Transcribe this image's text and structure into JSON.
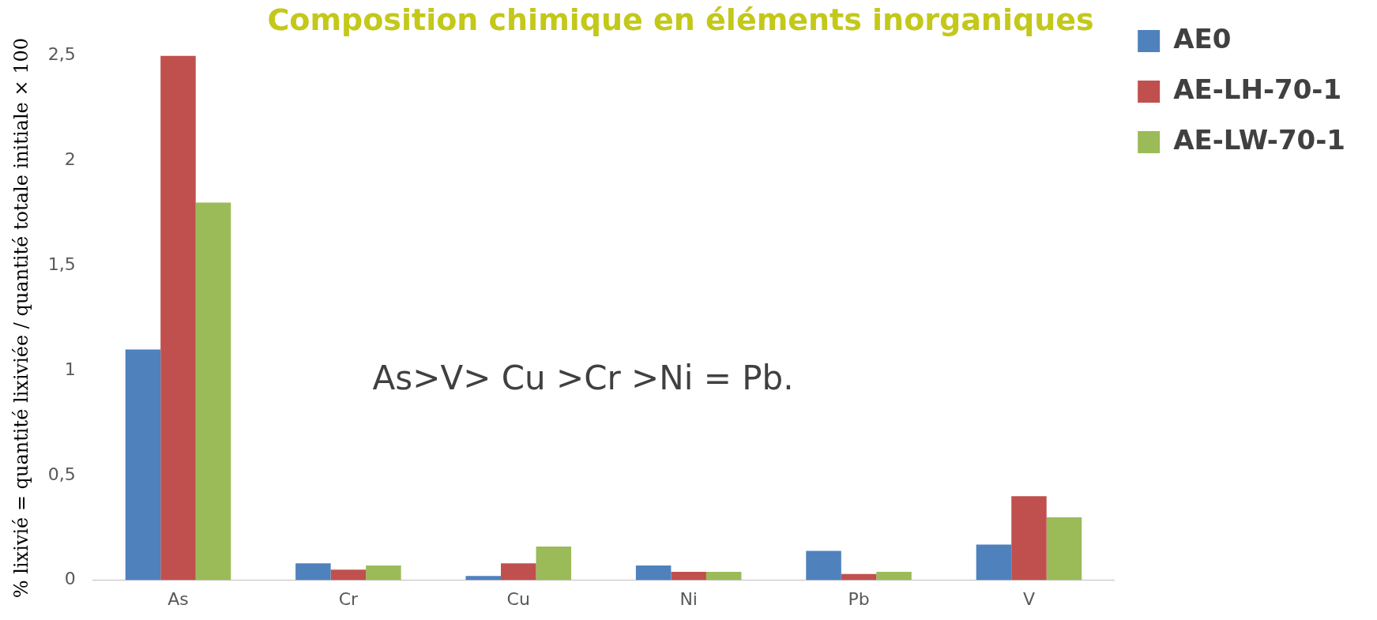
{
  "chart_data": {
    "type": "bar",
    "title": "Composition chimique en éléments inorganiques",
    "ylabel": "% lixivié = quantité lixiviée / quantité totale initiale × 100",
    "categories": [
      "As",
      "Cr",
      "Cu",
      "Ni",
      "Pb",
      "V"
    ],
    "series": [
      {
        "name": "AE0",
        "color": "#4f81bd",
        "values": [
          1.1,
          0.08,
          0.02,
          0.07,
          0.14,
          0.17
        ]
      },
      {
        "name": "AE-LH-70-1",
        "color": "#c0504d",
        "values": [
          2.5,
          0.05,
          0.08,
          0.04,
          0.03,
          0.4
        ]
      },
      {
        "name": "AE-LW-70-1",
        "color": "#9bbb59",
        "values": [
          1.8,
          0.07,
          0.16,
          0.04,
          0.04,
          0.3
        ]
      }
    ],
    "ylim": [
      0,
      2.5
    ],
    "yticks": [
      0,
      {
        "value": 0.5,
        "label": "0,5"
      },
      1,
      {
        "value": 1.5,
        "label": "1,5"
      },
      2,
      {
        "value": 2.5,
        "label": "2,5"
      }
    ],
    "grid": false,
    "legend": "right",
    "annotations": [
      "As>V> Cu >Cr >Ni = Pb."
    ]
  }
}
